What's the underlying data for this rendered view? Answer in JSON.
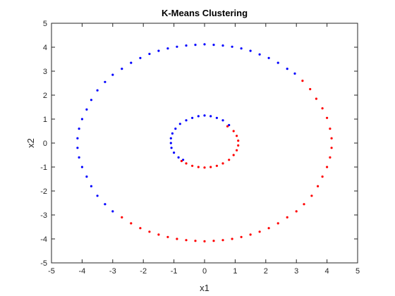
{
  "chart_data": {
    "type": "scatter",
    "title": "K-Means Clustering",
    "xlabel": "x1",
    "ylabel": "x2",
    "xlim": [
      -5,
      5
    ],
    "ylim": [
      -5,
      5
    ],
    "xticks": [
      "-5",
      "-4",
      "-3",
      "-2",
      "-1",
      "0",
      "1",
      "2",
      "3",
      "4",
      "5"
    ],
    "yticks": [
      "-5",
      "-4",
      "-3",
      "-2",
      "-1",
      "0",
      "1",
      "2",
      "3",
      "4",
      "5"
    ],
    "grid": false,
    "legend": "none",
    "series": [
      {
        "color": "#0000ff",
        "points": [
          [
            2.95,
            2.9
          ],
          [
            2.7,
            3.1
          ],
          [
            2.4,
            3.35
          ],
          [
            2.1,
            3.55
          ],
          [
            1.8,
            3.7
          ],
          [
            1.5,
            3.85
          ],
          [
            1.2,
            3.95
          ],
          [
            0.9,
            4.02
          ],
          [
            0.6,
            4.07
          ],
          [
            0.3,
            4.1
          ],
          [
            0.0,
            4.12
          ],
          [
            -0.3,
            4.1
          ],
          [
            -0.6,
            4.07
          ],
          [
            -0.9,
            4.02
          ],
          [
            -1.2,
            3.95
          ],
          [
            -1.5,
            3.85
          ],
          [
            -1.8,
            3.72
          ],
          [
            -2.1,
            3.55
          ],
          [
            -2.4,
            3.35
          ],
          [
            -2.7,
            3.1
          ],
          [
            -3.0,
            2.85
          ],
          [
            -3.25,
            2.55
          ],
          [
            -3.5,
            2.2
          ],
          [
            -3.7,
            1.8
          ],
          [
            -3.85,
            1.4
          ],
          [
            -4.0,
            1.0
          ],
          [
            -4.1,
            0.6
          ],
          [
            -4.15,
            0.2
          ],
          [
            -4.15,
            -0.2
          ],
          [
            -4.1,
            -0.6
          ],
          [
            -4.0,
            -1.0
          ],
          [
            -3.85,
            -1.4
          ],
          [
            -3.7,
            -1.8
          ],
          [
            -3.5,
            -2.2
          ],
          [
            -3.25,
            -2.55
          ],
          [
            -3.0,
            -2.85
          ],
          [
            0.8,
            0.75
          ],
          [
            0.6,
            0.95
          ],
          [
            0.4,
            1.05
          ],
          [
            0.2,
            1.12
          ],
          [
            0.0,
            1.15
          ],
          [
            -0.2,
            1.12
          ],
          [
            -0.4,
            1.05
          ],
          [
            -0.6,
            0.95
          ],
          [
            -0.8,
            0.8
          ],
          [
            -0.95,
            0.6
          ],
          [
            -1.05,
            0.4
          ],
          [
            -1.1,
            0.2
          ],
          [
            -1.1,
            0.0
          ],
          [
            -1.08,
            -0.2
          ],
          [
            -1.0,
            -0.4
          ],
          [
            -0.85,
            -0.6
          ],
          [
            -0.7,
            -0.7
          ]
        ]
      },
      {
        "color": "#ff0000",
        "points": [
          [
            3.2,
            2.6
          ],
          [
            3.45,
            2.25
          ],
          [
            3.65,
            1.85
          ],
          [
            3.85,
            1.45
          ],
          [
            4.0,
            1.05
          ],
          [
            4.1,
            0.6
          ],
          [
            4.15,
            0.2
          ],
          [
            4.15,
            -0.2
          ],
          [
            4.1,
            -0.6
          ],
          [
            4.0,
            -1.0
          ],
          [
            3.85,
            -1.4
          ],
          [
            3.7,
            -1.8
          ],
          [
            3.5,
            -2.2
          ],
          [
            3.25,
            -2.55
          ],
          [
            3.0,
            -2.85
          ],
          [
            2.7,
            -3.1
          ],
          [
            2.4,
            -3.35
          ],
          [
            2.1,
            -3.55
          ],
          [
            1.8,
            -3.7
          ],
          [
            1.5,
            -3.82
          ],
          [
            1.2,
            -3.92
          ],
          [
            0.9,
            -4.0
          ],
          [
            0.6,
            -4.05
          ],
          [
            0.3,
            -4.08
          ],
          [
            0.0,
            -4.1
          ],
          [
            -0.3,
            -4.08
          ],
          [
            -0.6,
            -4.05
          ],
          [
            -0.9,
            -4.0
          ],
          [
            -1.2,
            -3.92
          ],
          [
            -1.5,
            -3.82
          ],
          [
            -1.8,
            -3.7
          ],
          [
            -2.1,
            -3.55
          ],
          [
            -2.4,
            -3.35
          ],
          [
            -2.7,
            -3.1
          ],
          [
            0.75,
            0.7
          ],
          [
            0.95,
            0.5
          ],
          [
            1.05,
            0.3
          ],
          [
            1.1,
            0.1
          ],
          [
            1.1,
            -0.1
          ],
          [
            1.05,
            -0.3
          ],
          [
            0.95,
            -0.5
          ],
          [
            0.8,
            -0.7
          ],
          [
            0.6,
            -0.85
          ],
          [
            0.4,
            -0.95
          ],
          [
            0.2,
            -1.0
          ],
          [
            0.0,
            -1.02
          ],
          [
            -0.2,
            -1.0
          ],
          [
            -0.4,
            -0.95
          ],
          [
            -0.6,
            -0.85
          ],
          [
            -0.75,
            -0.75
          ]
        ]
      }
    ]
  }
}
